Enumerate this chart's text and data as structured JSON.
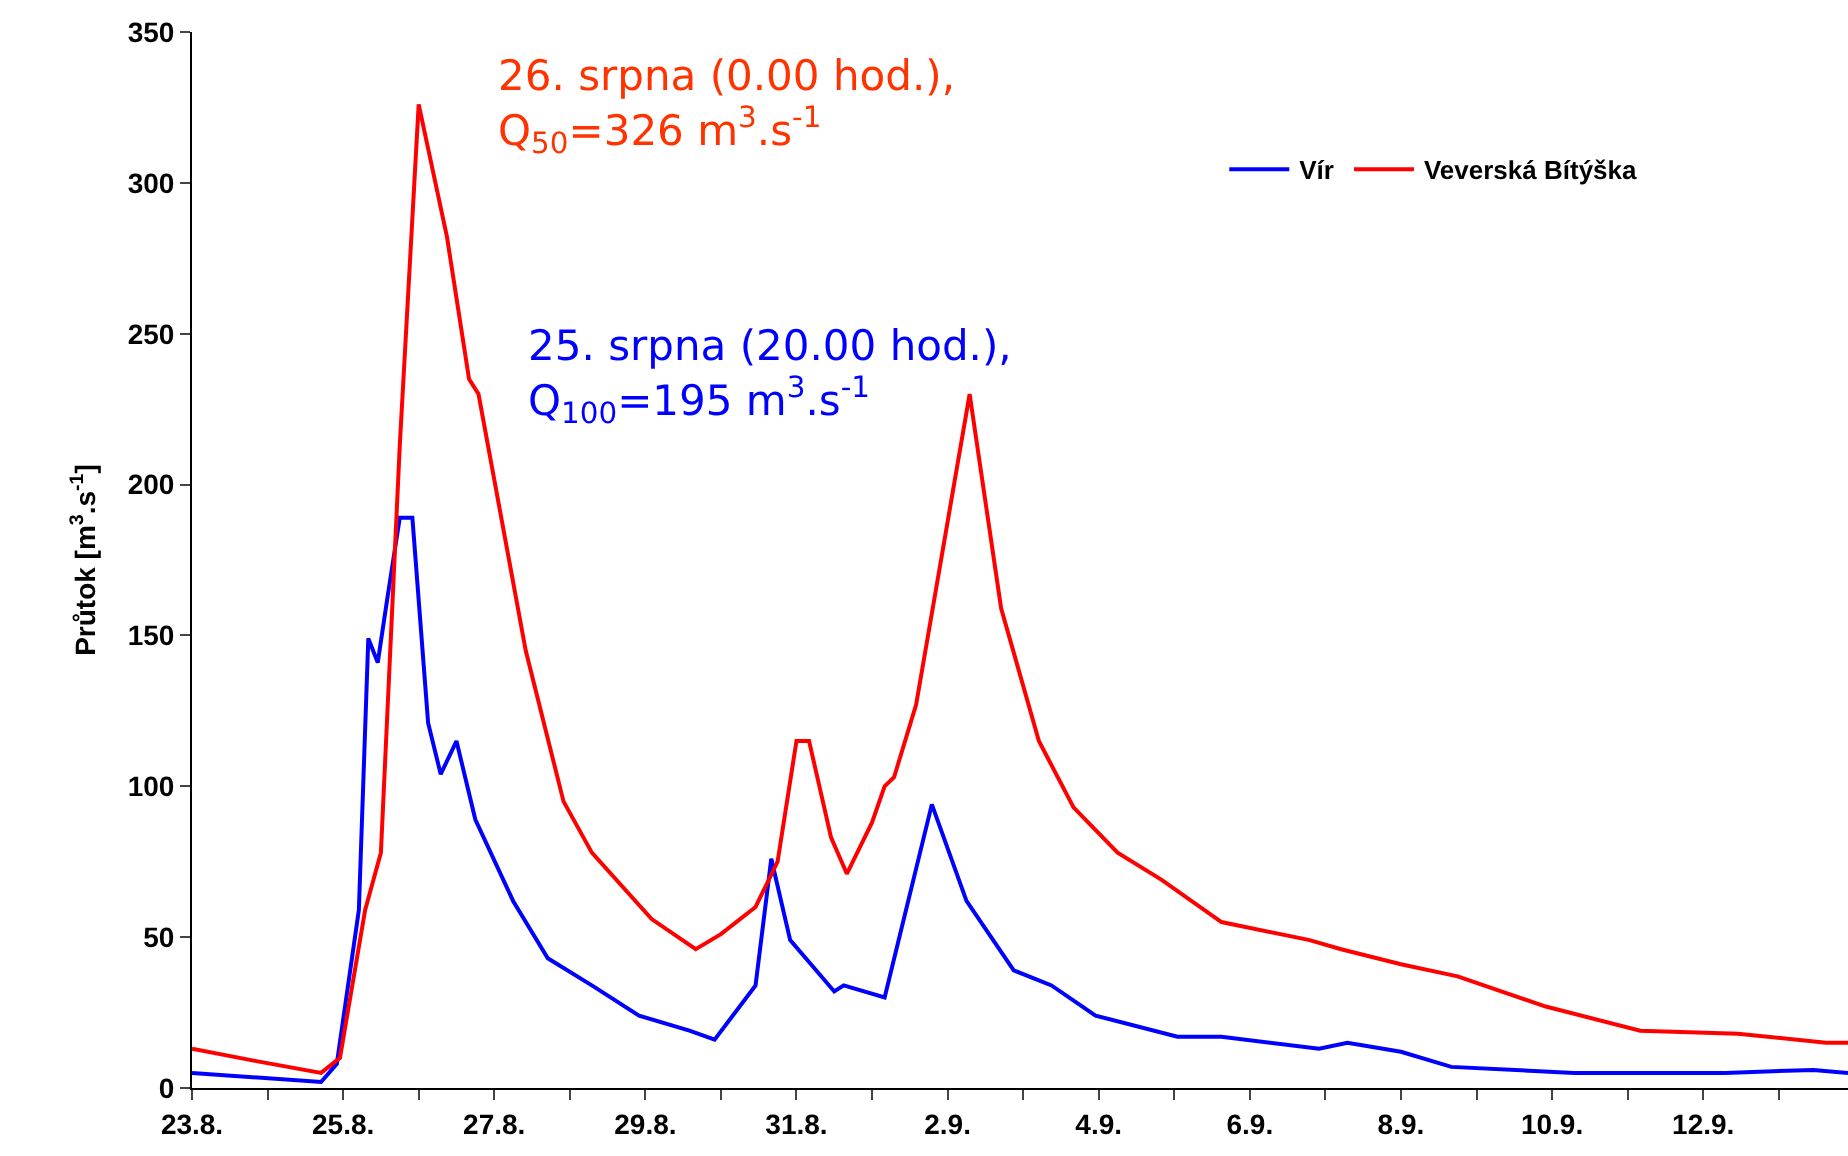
{
  "chart_data": {
    "type": "line",
    "ylabel": "Průtok [m$^{3}$.s$^{-1}$]",
    "xlim": [
      "--08-23",
      "--09-13T22:00"
    ],
    "xticks": [
      {
        "value": "--08-23",
        "label": "23.8."
      },
      {
        "value": "--08-24",
        "label": null
      },
      {
        "value": "--08-25",
        "label": "25.8."
      },
      {
        "value": "--08-26",
        "label": null
      },
      {
        "value": "--08-27",
        "label": "27.8."
      },
      {
        "value": "--08-28",
        "label": null
      },
      {
        "value": "--08-29",
        "label": "29.8."
      },
      {
        "value": "--08-30",
        "label": null
      },
      {
        "value": "--08-31",
        "label": "31.8."
      },
      {
        "value": "--09-01",
        "label": null
      },
      {
        "value": "--09-02",
        "label": "2.9."
      },
      {
        "value": "--09-03",
        "label": null
      },
      {
        "value": "--09-04",
        "label": "4.9."
      },
      {
        "value": "--09-05",
        "label": null
      },
      {
        "value": "--09-06",
        "label": "6.9."
      },
      {
        "value": "--09-07",
        "label": null
      },
      {
        "value": "--09-08",
        "label": "8.9."
      },
      {
        "value": "--09-09",
        "label": null
      },
      {
        "value": "--09-10",
        "label": "10.9."
      },
      {
        "value": "--09-11",
        "label": null
      },
      {
        "value": "--09-12",
        "label": "12.9."
      },
      {
        "value": "--09-13",
        "label": null
      }
    ],
    "ylim": [
      0,
      350
    ],
    "yticks": [
      0,
      50,
      100,
      150,
      200,
      250,
      300,
      350
    ],
    "grid": false,
    "legend": "top right",
    "marker": "none",
    "line_style": "solid",
    "series": [
      {
        "name": "Vír",
        "color": "#0000ff",
        "x": [
          "--08-23T00:00",
          "--08-24T17:00",
          "--08-24T22:00",
          "--08-25T05:00",
          "--08-25T08:00",
          "--08-25T11:00",
          "--08-25T14:00",
          "--08-25T18:00",
          "--08-25T22:00",
          "--08-26T03:00",
          "--08-26T07:00",
          "--08-26T12:00",
          "--08-26T18:00",
          "--08-27T06:00",
          "--08-27T17:00",
          "--08-28T07:00",
          "--08-28T22:00",
          "--08-29T14:00",
          "--08-29T22:00",
          "--08-30T11:00",
          "--08-30T16:00",
          "--08-30T22:00",
          "--08-31T12:00",
          "--08-31T15:00",
          "--09-01T04:00",
          "--09-01T19:00",
          "--09-02T06:00",
          "--09-02T21:00",
          "--09-03T09:00",
          "--09-03T23:00",
          "--09-05T01:00",
          "--09-05T15:00",
          "--09-06T22:00",
          "--09-07T07:00",
          "--09-08T00:00",
          "--09-08T16:00",
          "--09-10T07:00",
          "--09-11T09:00",
          "--09-12T07:00",
          "--09-13T11:00",
          "--09-13T22:00"
        ],
        "values": [
          5,
          2,
          8,
          59,
          149,
          141,
          162,
          189,
          189,
          121,
          104,
          115,
          89,
          62,
          43,
          34,
          24,
          19,
          16,
          34,
          76,
          49,
          32,
          34,
          30,
          94,
          62,
          39,
          34,
          24,
          17,
          17,
          13,
          15,
          12,
          7,
          5,
          5,
          5,
          6,
          5
        ]
      },
      {
        "name": "Veverská Bítýška",
        "color": "#ff0000",
        "x": [
          "--08-23T00:00",
          "--08-23T20:00",
          "--08-24T17:00",
          "--08-24T23:00",
          "--08-25T07:00",
          "--08-25T12:00",
          "--08-25T18:00",
          "--08-26T00:00",
          "--08-26T09:00",
          "--08-26T16:00",
          "--08-26T19:00",
          "--08-27T10:00",
          "--08-27T22:00",
          "--08-28T07:00",
          "--08-29T02:00",
          "--08-29T16:00",
          "--08-30T00:00",
          "--08-30T11:00",
          "--08-30T18:00",
          "--08-31T00:00",
          "--08-31T04:00",
          "--08-31T11:00",
          "--08-31T16:00",
          "--09-01T00:00",
          "--09-01T04:00",
          "--09-01T07:00",
          "--09-01T14:00",
          "--09-02T07:00",
          "--09-02T17:00",
          "--09-03T05:00",
          "--09-03T16:00",
          "--09-04T06:00",
          "--09-04T20:00",
          "--09-05T15:00",
          "--09-06T19:00",
          "--09-07T05:00",
          "--09-08T00:00",
          "--09-08T18:00",
          "--09-09T22:00",
          "--09-11T04:00",
          "--09-12T11:00",
          "--09-13T15:00",
          "--09-13T22:00"
        ],
        "values": [
          13,
          9,
          5,
          10,
          59,
          78,
          213,
          326,
          282,
          235,
          230,
          145,
          95,
          78,
          56,
          46,
          51,
          60,
          75,
          115,
          115,
          83,
          71,
          88,
          100,
          103,
          127,
          230,
          159,
          115,
          93,
          78,
          69,
          55,
          49,
          46,
          41,
          37,
          27,
          19,
          18,
          15,
          15
        ]
      }
    ],
    "annotations": [
      "26. srpna (0.00 hod.),\nQ$_{50}$=326 m$^{3}$.s$^{-1}$",
      "25. srpna (20.00 hod.),\nQ$_{100}$=195 m$^{3}$.s$^{-1}$"
    ]
  }
}
